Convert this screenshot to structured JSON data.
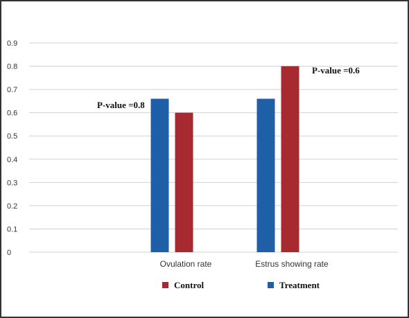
{
  "chart_data": {
    "type": "bar",
    "categories": [
      "Ovulation rate",
      "Estrus showing rate"
    ],
    "series": [
      {
        "name": "Treatment",
        "values": [
          0.66,
          0.66
        ]
      },
      {
        "name": "Control",
        "values": [
          0.6,
          0.8
        ]
      }
    ],
    "ylim": [
      0,
      0.9
    ],
    "yticks": [
      "0",
      "0.1",
      "0.2",
      "0.3",
      "0.4",
      "0.5",
      "0.6",
      "0.7",
      "0.8",
      "0.9"
    ],
    "grid": true,
    "legend_position": "bottom",
    "legend_order": [
      "Control",
      "Treatment"
    ],
    "annotations": [
      "P-value =0.8",
      "P-value =0.6"
    ],
    "colors": {
      "Treatment": "#1f5fa8",
      "Control": "#a62a2f",
      "grid": "#d0d0d0",
      "frame": "#333333"
    }
  }
}
